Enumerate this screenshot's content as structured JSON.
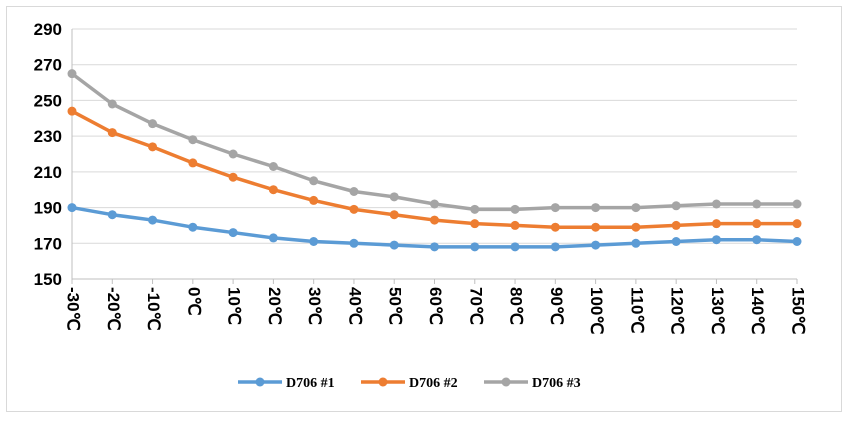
{
  "chart_data": {
    "type": "line",
    "title": "",
    "xlabel": "",
    "ylabel": "",
    "categories": [
      "-30℃",
      "-20℃",
      "-10℃",
      "0℃",
      "10℃",
      "20℃",
      "30℃",
      "40℃",
      "50℃",
      "60℃",
      "70℃",
      "80℃",
      "90℃",
      "100℃",
      "110℃",
      "120℃",
      "130℃",
      "140℃",
      "150℃"
    ],
    "yticks": [
      "150",
      "170",
      "190",
      "210",
      "230",
      "250",
      "270",
      "290"
    ],
    "ylim": [
      150,
      290
    ],
    "grid": "horizontal",
    "legend": "bottom",
    "series": [
      {
        "name": "D706 #1",
        "color": "#5b9bd5",
        "values": [
          190,
          186,
          183,
          179,
          176,
          173,
          171,
          170,
          169,
          168,
          168,
          168,
          168,
          169,
          170,
          171,
          172,
          172,
          171
        ]
      },
      {
        "name": "D706 #2",
        "color": "#ed7d31",
        "values": [
          244,
          232,
          224,
          215,
          207,
          200,
          194,
          189,
          186,
          183,
          181,
          180,
          179,
          179,
          179,
          180,
          181,
          181,
          181
        ]
      },
      {
        "name": "D706 #3",
        "color": "#a5a5a5",
        "values": [
          265,
          248,
          237,
          228,
          220,
          213,
          205,
          199,
          196,
          192,
          189,
          189,
          190,
          190,
          190,
          191,
          192,
          192,
          192
        ]
      }
    ]
  }
}
